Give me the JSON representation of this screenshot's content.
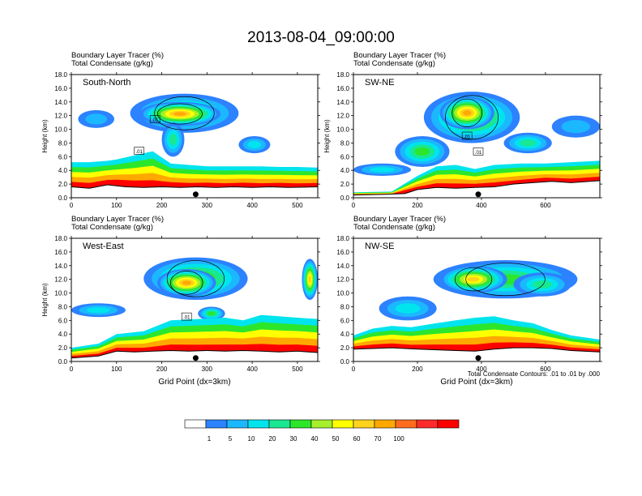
{
  "title": "2013-08-04_09:00:00",
  "footnote": "Total Condensate Contours: .01 to .01 by .000",
  "chart_data": [
    {
      "type": "heatmap",
      "panel_label": "South-North",
      "fill_label": "Boundary Layer Tracer   (%)",
      "contour_label": "Total Condensate   (g/kg)",
      "ylabel": "Height (km)",
      "xlabel": "",
      "xlim": [
        0,
        545
      ],
      "ylim": [
        0,
        18
      ],
      "xticks": [
        0,
        100,
        200,
        300,
        400,
        500
      ],
      "yticks": [
        0.0,
        2.0,
        4.0,
        6.0,
        8.0,
        10.0,
        12.0,
        14.0,
        16.0,
        18.0
      ],
      "marker_x": 275,
      "contour_tags": [
        {
          "text": ".01",
          "x": 185,
          "y": 11.4
        },
        {
          "text": ".01",
          "x": 150,
          "y": 6.8
        }
      ],
      "surface": [
        [
          0,
          1.6
        ],
        [
          40,
          1.4
        ],
        [
          80,
          1.9
        ],
        [
          120,
          1.6
        ],
        [
          160,
          1.5
        ],
        [
          200,
          1.6
        ],
        [
          240,
          1.5
        ],
        [
          280,
          1.6
        ],
        [
          320,
          1.5
        ],
        [
          360,
          1.6
        ],
        [
          400,
          1.5
        ],
        [
          440,
          1.6
        ],
        [
          480,
          1.5
        ],
        [
          545,
          1.6
        ]
      ],
      "bl_top": [
        [
          0,
          5.2
        ],
        [
          40,
          5.2
        ],
        [
          80,
          5.4
        ],
        [
          100,
          5.6
        ],
        [
          140,
          6.2
        ],
        [
          180,
          6.8
        ],
        [
          220,
          5.0
        ],
        [
          260,
          4.8
        ],
        [
          300,
          4.6
        ],
        [
          340,
          4.6
        ],
        [
          380,
          4.6
        ],
        [
          420,
          4.6
        ],
        [
          460,
          4.5
        ],
        [
          500,
          4.5
        ],
        [
          545,
          4.4
        ]
      ],
      "blobs": [
        {
          "x": [
            130,
            370
          ],
          "y": [
            9.5,
            15.2
          ],
          "v": 30
        },
        {
          "x": [
            150,
            330
          ],
          "y": [
            10.5,
            14.0
          ],
          "v": 70
        },
        {
          "x": [
            15,
            95
          ],
          "y": [
            10.2,
            12.8
          ],
          "v": 5
        },
        {
          "x": [
            200,
            250
          ],
          "y": [
            6.0,
            11.0
          ],
          "v": 20
        },
        {
          "x": [
            370,
            440
          ],
          "y": [
            6.5,
            9.0
          ],
          "v": 10
        }
      ]
    },
    {
      "type": "heatmap",
      "panel_label": "SW-NE",
      "fill_label": "Boundary Layer Tracer   (%)",
      "contour_label": "Total Condensate   (g/kg)",
      "ylabel": "Height (km)",
      "xlabel": "",
      "xlim": [
        0,
        770
      ],
      "ylim": [
        0,
        18
      ],
      "xticks": [
        0,
        200,
        400,
        600
      ],
      "yticks": [
        0.0,
        2.0,
        4.0,
        6.0,
        8.0,
        10.0,
        12.0,
        14.0,
        16.0,
        18.0
      ],
      "marker_x": 390,
      "contour_tags": [
        {
          "text": ".01",
          "x": 355,
          "y": 9.0
        },
        {
          "text": ".01",
          "x": 390,
          "y": 6.7
        }
      ],
      "surface": [
        [
          0,
          0.4
        ],
        [
          100,
          0.5
        ],
        [
          160,
          0.6
        ],
        [
          200,
          1.2
        ],
        [
          260,
          1.5
        ],
        [
          320,
          1.4
        ],
        [
          380,
          1.5
        ],
        [
          440,
          1.6
        ],
        [
          500,
          2.0
        ],
        [
          560,
          2.2
        ],
        [
          620,
          2.4
        ],
        [
          680,
          2.2
        ],
        [
          770,
          2.5
        ]
      ],
      "bl_top": [
        [
          0,
          0.8
        ],
        [
          120,
          0.9
        ],
        [
          200,
          3.2
        ],
        [
          260,
          4.6
        ],
        [
          320,
          4.8
        ],
        [
          380,
          4.2
        ],
        [
          440,
          4.8
        ],
        [
          520,
          5.0
        ],
        [
          600,
          5.0
        ],
        [
          680,
          5.2
        ],
        [
          770,
          5.4
        ]
      ],
      "blobs": [
        {
          "x": [
            220,
            520
          ],
          "y": [
            8.0,
            15.5
          ],
          "v": 40
        },
        {
          "x": [
            270,
            440
          ],
          "y": [
            10.0,
            14.8
          ],
          "v": 70
        },
        {
          "x": [
            130,
            300
          ],
          "y": [
            4.5,
            9.0
          ],
          "v": 30
        },
        {
          "x": [
            0,
            180
          ],
          "y": [
            3.2,
            5.0
          ],
          "v": 10
        },
        {
          "x": [
            620,
            770
          ],
          "y": [
            8.8,
            12.0
          ],
          "v": 5
        },
        {
          "x": [
            470,
            620
          ],
          "y": [
            6.5,
            9.5
          ],
          "v": 20
        }
      ]
    },
    {
      "type": "heatmap",
      "panel_label": "West-East",
      "fill_label": "Boundary Layer Tracer   (%)",
      "contour_label": "Total Condensate   (g/kg)",
      "ylabel": "Height (km)",
      "xlabel": "Grid Point (dx=3km)",
      "xlim": [
        0,
        545
      ],
      "ylim": [
        0,
        18
      ],
      "xticks": [
        0,
        100,
        200,
        300,
        400,
        500
      ],
      "yticks": [
        0.0,
        2.0,
        4.0,
        6.0,
        8.0,
        10.0,
        12.0,
        14.0,
        16.0,
        18.0
      ],
      "marker_x": 275,
      "contour_tags": [
        {
          "text": ".01",
          "x": 255,
          "y": 6.5
        }
      ],
      "surface": [
        [
          0,
          0.5
        ],
        [
          60,
          0.8
        ],
        [
          100,
          1.5
        ],
        [
          140,
          1.4
        ],
        [
          180,
          1.5
        ],
        [
          220,
          1.6
        ],
        [
          260,
          1.5
        ],
        [
          300,
          1.6
        ],
        [
          340,
          1.5
        ],
        [
          380,
          1.6
        ],
        [
          420,
          1.5
        ],
        [
          460,
          1.4
        ],
        [
          500,
          1.5
        ],
        [
          545,
          1.3
        ]
      ],
      "bl_top": [
        [
          0,
          2.0
        ],
        [
          60,
          2.6
        ],
        [
          100,
          4.0
        ],
        [
          160,
          4.4
        ],
        [
          220,
          6.0
        ],
        [
          280,
          6.2
        ],
        [
          340,
          6.4
        ],
        [
          380,
          6.0
        ],
        [
          420,
          6.8
        ],
        [
          460,
          6.6
        ],
        [
          500,
          6.4
        ],
        [
          545,
          6.2
        ]
      ],
      "blobs": [
        {
          "x": [
            160,
            390
          ],
          "y": [
            9.0,
            15.2
          ],
          "v": 40
        },
        {
          "x": [
            190,
            320
          ],
          "y": [
            9.5,
            13.5
          ],
          "v": 70
        },
        {
          "x": [
            0,
            120
          ],
          "y": [
            6.5,
            8.5
          ],
          "v": 10
        },
        {
          "x": [
            510,
            545
          ],
          "y": [
            9.0,
            15.0
          ],
          "v": 60
        },
        {
          "x": [
            280,
            340
          ],
          "y": [
            6.0,
            8.0
          ],
          "v": 30
        }
      ]
    },
    {
      "type": "heatmap",
      "panel_label": "NW-SE",
      "fill_label": "Boundary Layer Tracer   (%)",
      "contour_label": "Total Condensate   (g/kg)",
      "ylabel": "",
      "xlabel": "Grid Point (dx=3km)",
      "xlim": [
        0,
        770
      ],
      "ylim": [
        0,
        18
      ],
      "xticks": [
        0,
        200,
        400,
        600
      ],
      "yticks": [
        0.0,
        2.0,
        4.0,
        6.0,
        8.0,
        10.0,
        12.0,
        14.0,
        16.0,
        18.0
      ],
      "marker_x": 390,
      "contour_tags": [],
      "surface": [
        [
          0,
          1.8
        ],
        [
          60,
          1.9
        ],
        [
          120,
          2.0
        ],
        [
          200,
          1.8
        ],
        [
          260,
          1.7
        ],
        [
          320,
          1.6
        ],
        [
          380,
          1.5
        ],
        [
          440,
          1.8
        ],
        [
          500,
          2.0
        ],
        [
          560,
          2.0
        ],
        [
          620,
          1.9
        ],
        [
          680,
          1.6
        ],
        [
          770,
          1.4
        ]
      ],
      "bl_top": [
        [
          0,
          3.8
        ],
        [
          60,
          4.8
        ],
        [
          120,
          5.2
        ],
        [
          180,
          5.0
        ],
        [
          260,
          5.6
        ],
        [
          320,
          6.0
        ],
        [
          380,
          6.4
        ],
        [
          440,
          6.6
        ],
        [
          500,
          6.0
        ],
        [
          560,
          5.6
        ],
        [
          620,
          4.6
        ],
        [
          680,
          3.8
        ],
        [
          770,
          3.2
        ]
      ],
      "blobs": [
        {
          "x": [
            250,
            700
          ],
          "y": [
            9.2,
            14.8
          ],
          "v": 30
        },
        {
          "x": [
            270,
            480
          ],
          "y": [
            10.0,
            14.0
          ],
          "v": 60
        },
        {
          "x": [
            80,
            260
          ],
          "y": [
            6.0,
            9.5
          ],
          "v": 10
        },
        {
          "x": [
            500,
            680
          ],
          "y": [
            9.5,
            13.0
          ],
          "v": 20
        }
      ]
    }
  ],
  "colorbar": {
    "colors": [
      "#ffffff",
      "#2c82ff",
      "#1cb8ff",
      "#00e4ee",
      "#19e892",
      "#2ce62c",
      "#a6ef2c",
      "#ffff00",
      "#ffd21e",
      "#ffa800",
      "#ff6c1e",
      "#ff2a2a",
      "#ff0000"
    ],
    "labels": [
      "1",
      "5",
      "10",
      "20",
      "30",
      "40",
      "50",
      "60",
      "70",
      "100"
    ]
  }
}
